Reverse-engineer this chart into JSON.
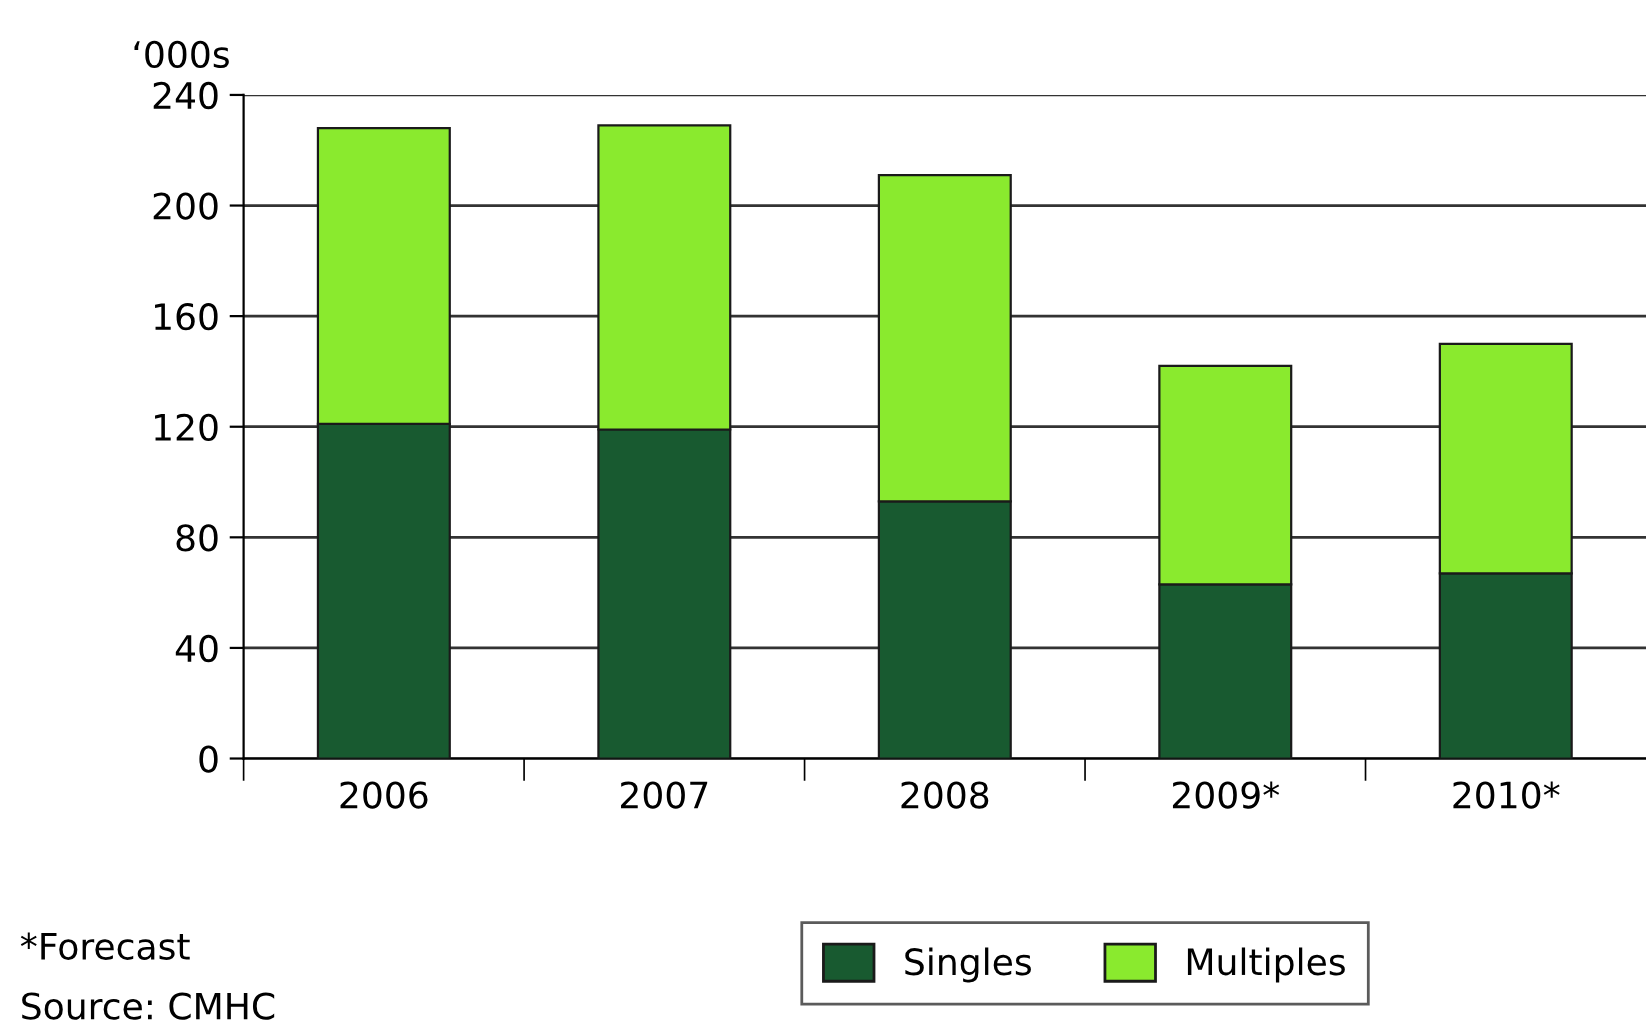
{
  "chart_data": {
    "type": "bar",
    "stacked": true,
    "ylabel": "‘000s",
    "categories": [
      "2006",
      "2007",
      "2008",
      "2009*",
      "2010*"
    ],
    "series": [
      {
        "name": "Singles",
        "color": "#185a30",
        "values": [
          121,
          119,
          93,
          63,
          67
        ]
      },
      {
        "name": "Multiples",
        "color": "#8aea2e",
        "values": [
          107,
          110,
          118,
          79,
          83
        ]
      }
    ],
    "ylim": [
      0,
      240
    ],
    "yticks": [
      0,
      40,
      80,
      120,
      160,
      200,
      240
    ],
    "grid": "y",
    "legend": "bottom",
    "annotations": [
      "*Forecast",
      "Source: CMHC"
    ]
  }
}
